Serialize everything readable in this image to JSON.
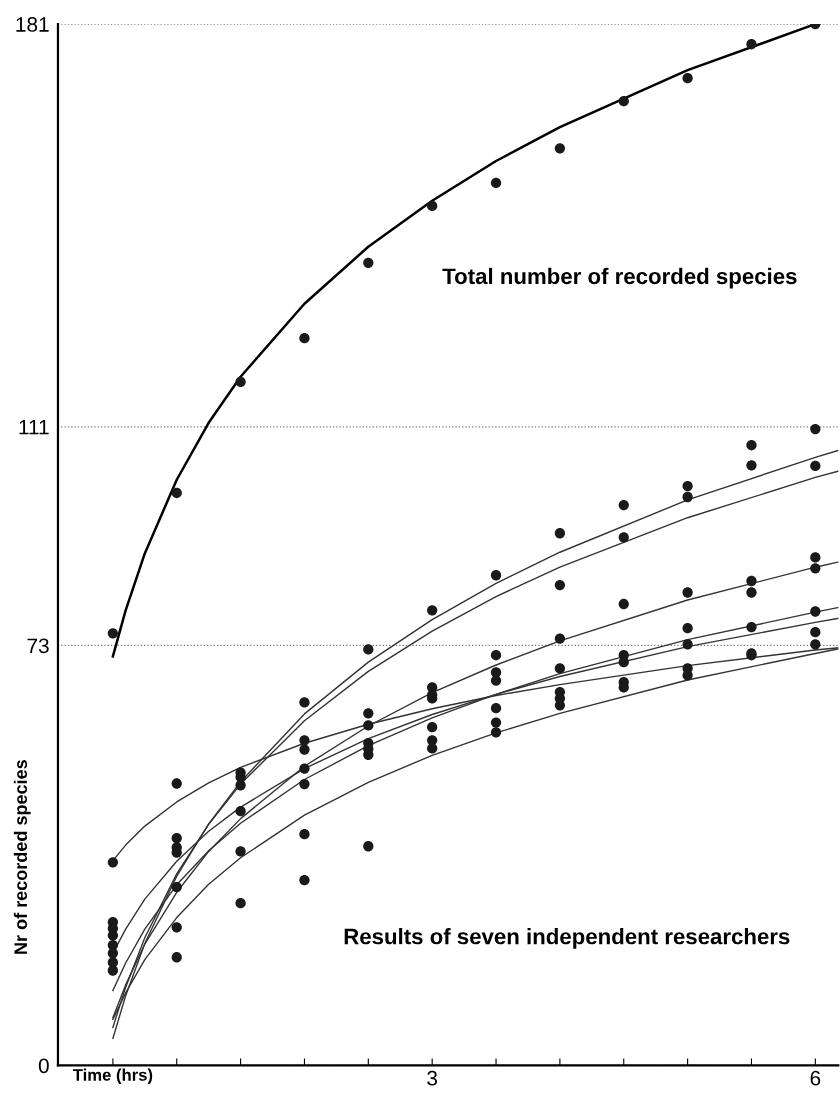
{
  "chart_data": {
    "type": "scatter",
    "xlabel": "Time (hrs)",
    "ylabel": "Nr of recorded species",
    "annotations": [
      "Total number of recorded species",
      "Results of seven independent researchers"
    ],
    "xlim": [
      0.07,
      6.18
    ],
    "ylim": [
      0,
      181
    ],
    "xticks": [
      {
        "value": 0.5,
        "label": null
      },
      {
        "value": 1,
        "label": null
      },
      {
        "value": 1.5,
        "label": null
      },
      {
        "value": 2,
        "label": null
      },
      {
        "value": 2.5,
        "label": null
      },
      3,
      {
        "value": 3.5,
        "label": null
      },
      {
        "value": 4,
        "label": null
      },
      {
        "value": 4.5,
        "label": null
      },
      {
        "value": 5,
        "label": null
      },
      {
        "value": 5.5,
        "label": null
      },
      6
    ],
    "yticks": [
      0,
      73,
      111,
      181
    ],
    "grid": "y",
    "marker": "circle",
    "series": [
      {
        "color": "#1a1a1a",
        "x": [
          0.5,
          1,
          1.5,
          2,
          2.5,
          3,
          3.5,
          4,
          4.5,
          5,
          5.5,
          6
        ],
        "values": [
          75.1,
          99.5,
          118.8,
          126.4,
          139.5,
          149.4,
          153.4,
          159.4,
          167.6,
          171.6,
          177.5,
          181
        ]
      },
      {
        "color": "#1a1a1a",
        "x": [
          0.5,
          0.5,
          0.5,
          0.5,
          0.5,
          0.5,
          0.5,
          0.5,
          1,
          1,
          1,
          1,
          1,
          1,
          1,
          1.5,
          1.5,
          1.5,
          1.5,
          1.5,
          1.5,
          2,
          2,
          2,
          2,
          2,
          2,
          2,
          2.5,
          2.5,
          2.5,
          2.5,
          2.5,
          2.5,
          2.5,
          3,
          3,
          3,
          3,
          3,
          3,
          3,
          3.5,
          3.5,
          3.5,
          3.5,
          3.5,
          3.5,
          3.5,
          4,
          4,
          4,
          4,
          4,
          4,
          4,
          4.5,
          4.5,
          4.5,
          4.5,
          4.5,
          4.5,
          4.5,
          5,
          5,
          5,
          5,
          5,
          5,
          5,
          5.5,
          5.5,
          5.5,
          5.5,
          5.5,
          5.5,
          5.5,
          6,
          6,
          6,
          6,
          6,
          6,
          6
        ],
        "values": [
          35.3,
          24.9,
          23.8,
          22.6,
          20.9,
          19.5,
          17.9,
          16.5,
          49.0,
          39.5,
          37.9,
          37.0,
          31.0,
          24.0,
          18.8,
          50.9,
          50.1,
          48.7,
          44.2,
          37.2,
          28.2,
          63.1,
          56.5,
          54.9,
          51.6,
          48.9,
          40.2,
          32.2,
          72.3,
          61.2,
          59.1,
          56.0,
          55.0,
          54.0,
          38.1,
          79.1,
          65.7,
          64.4,
          63.8,
          58.8,
          56.5,
          55.1,
          85.2,
          71.3,
          68.3,
          66.9,
          62.1,
          59.6,
          57.9,
          92.5,
          83.5,
          74.2,
          69.0,
          64.9,
          63.8,
          62.6,
          97.4,
          91.8,
          80.2,
          71.3,
          70.1,
          66.6,
          65.7,
          100.7,
          98.8,
          82.2,
          76.0,
          73.2,
          69.0,
          67.8,
          107.8,
          104.3,
          84.2,
          82.2,
          76.2,
          71.6,
          71.3,
          110.6,
          104.2,
          88.3,
          86.4,
          78.9,
          75.3,
          73.2
        ]
      },
      {
        "type": "line",
        "color": "#000000",
        "marker": "none",
        "x": [
          0.5,
          0.6,
          0.75,
          1,
          1.25,
          1.5,
          2,
          2.5,
          3,
          3.5,
          4,
          5,
          6
        ],
        "values": [
          71.1,
          79.1,
          89.0,
          101.8,
          111.7,
          119.7,
          132.4,
          142.3,
          150.3,
          157.2,
          163.1,
          173.0,
          181
        ]
      },
      {
        "type": "line",
        "color": "#333333",
        "marker": "none",
        "x": [
          0.5,
          0.6,
          0.75,
          1,
          1.25,
          1.5,
          2,
          2.5,
          3,
          3.5,
          4,
          5,
          6,
          6.18
        ],
        "values": [
          4.7,
          12.1,
          21.2,
          32.9,
          42.0,
          49.3,
          61.1,
          70.1,
          77.5,
          83.8,
          89.2,
          98.3,
          105.7,
          106.9
        ]
      },
      {
        "type": "line",
        "color": "#333333",
        "marker": "none",
        "x": [
          0.5,
          0.6,
          0.75,
          1,
          1.25,
          1.5,
          2,
          2.5,
          3,
          3.5,
          4,
          5,
          6,
          6.18
        ],
        "values": [
          6.6,
          13.6,
          22.2,
          33.3,
          41.9,
          48.9,
          59.9,
          68.5,
          75.5,
          81.5,
          86.6,
          95.2,
          102.2,
          103.3
        ]
      },
      {
        "type": "line",
        "color": "#333333",
        "marker": "none",
        "x": [
          0.5,
          0.6,
          0.75,
          1,
          1.25,
          1.5,
          2,
          2.5,
          3,
          3.5,
          4,
          5,
          6,
          6.18
        ],
        "values": [
          8.3,
          14.0,
          21.1,
          30.1,
          37.2,
          42.9,
          52.0,
          59.0,
          64.8,
          69.6,
          73.8,
          80.9,
          86.6,
          87.5
        ]
      },
      {
        "type": "line",
        "color": "#333333",
        "marker": "none",
        "x": [
          0.5,
          0.6,
          0.75,
          1,
          1.25,
          1.5,
          2,
          2.5,
          3,
          3.5,
          4,
          5,
          6,
          6.18
        ],
        "values": [
          13.0,
          17.8,
          23.7,
          31.4,
          37.3,
          42.1,
          49.7,
          55.6,
          60.4,
          64.5,
          68.1,
          74.0,
          78.8,
          79.6
        ]
      },
      {
        "type": "line",
        "color": "#333333",
        "marker": "none",
        "x": [
          0.5,
          0.6,
          0.75,
          1,
          1.25,
          1.5,
          2,
          2.5,
          3,
          3.5,
          4,
          5,
          6,
          6.18
        ],
        "values": [
          19.5,
          23.7,
          28.9,
          35.5,
          40.7,
          44.9,
          51.6,
          56.8,
          61.0,
          64.5,
          67.6,
          72.8,
          77.0,
          77.7
        ]
      },
      {
        "type": "line",
        "color": "#333333",
        "marker": "none",
        "x": [
          0.5,
          0.6,
          0.75,
          1,
          1.25,
          1.5,
          2,
          2.5,
          3,
          3.5,
          4,
          5,
          6,
          6.18
        ],
        "values": [
          8.0,
          12.6,
          18.4,
          25.7,
          31.5,
          36.1,
          43.5,
          49.2,
          53.9,
          57.8,
          61.2,
          67.0,
          71.6,
          72.4
        ]
      },
      {
        "type": "line",
        "color": "#333333",
        "marker": "none",
        "x": [
          0.5,
          0.6,
          0.75,
          1,
          1.25,
          1.5,
          2,
          2.5,
          3,
          3.5,
          4,
          5,
          6,
          6.18
        ],
        "values": [
          35.6,
          38.3,
          41.6,
          45.8,
          49.1,
          51.8,
          56.0,
          59.3,
          62.0,
          64.3,
          66.2,
          69.5,
          72.2,
          72.6
        ]
      }
    ]
  }
}
